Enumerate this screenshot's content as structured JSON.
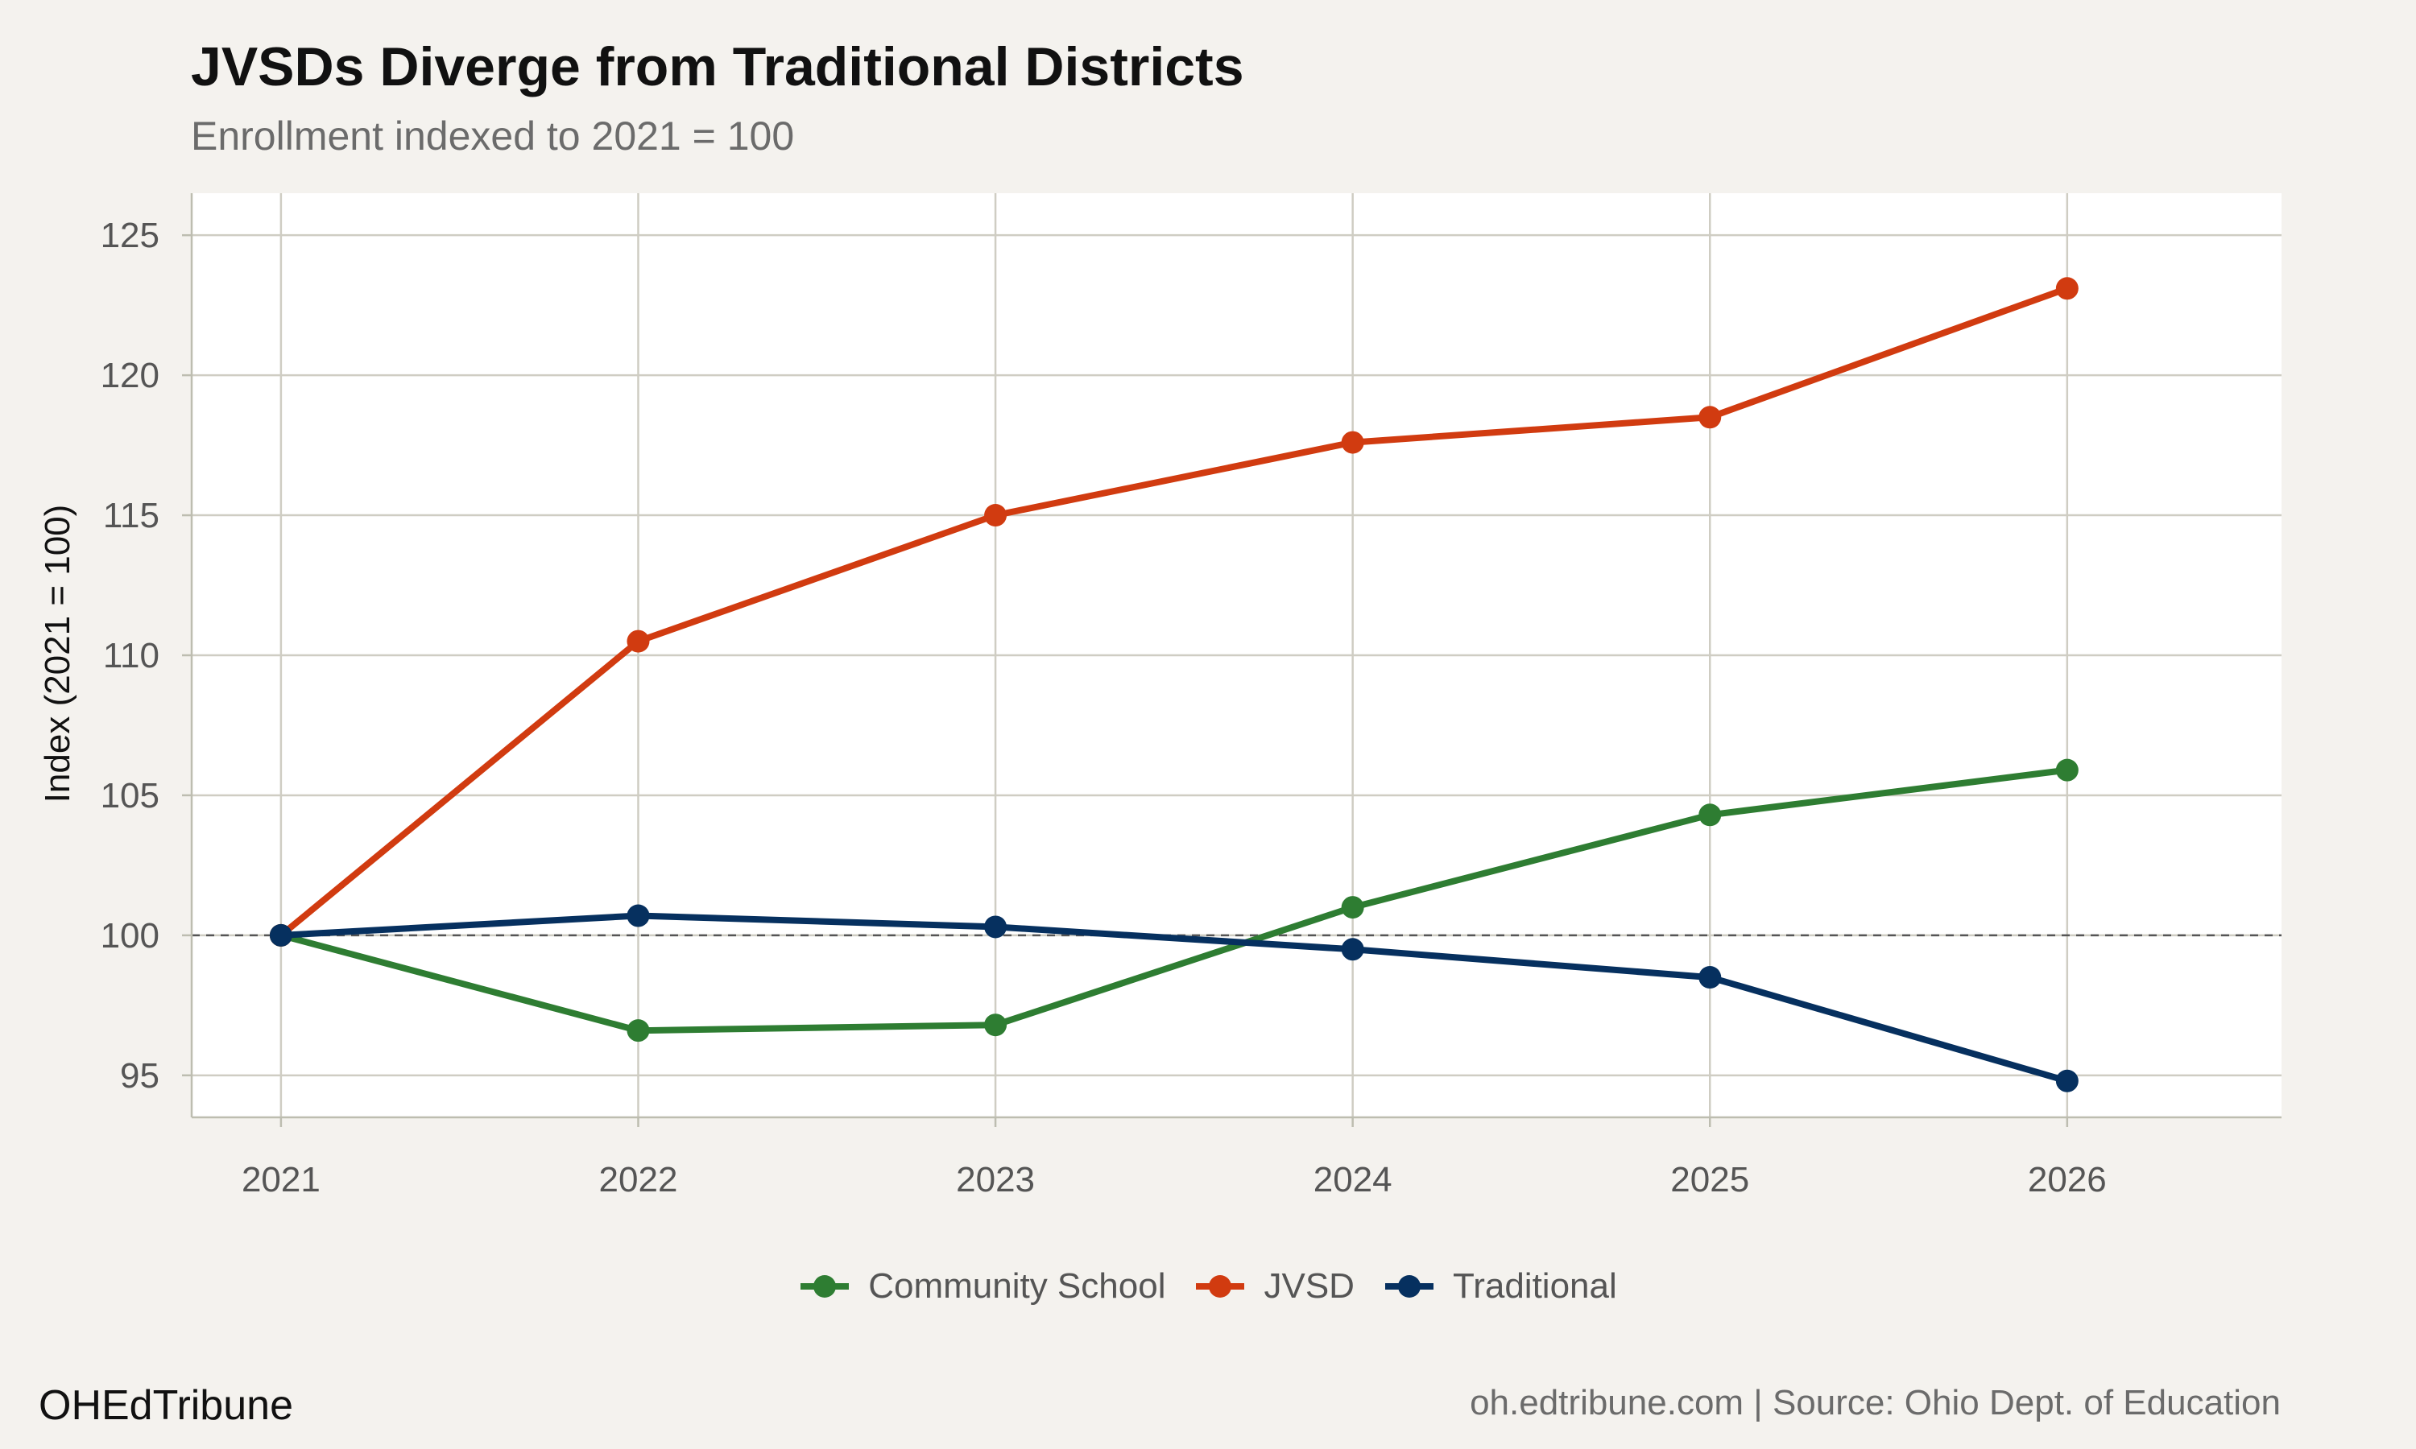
{
  "chart_data": {
    "type": "line",
    "title": "JVSDs Diverge from Traditional Districts",
    "subtitle": "Enrollment indexed to 2021 = 100",
    "ylabel": "Index (2021 = 100)",
    "xlabel": "",
    "x": [
      2021,
      2022,
      2023,
      2024,
      2025,
      2026
    ],
    "x_tick_labels": [
      "2021",
      "2022",
      "2023",
      "2024",
      "2025",
      "2026"
    ],
    "xlim": [
      2020.75,
      2026.6
    ],
    "ylim": [
      93.5,
      126.5
    ],
    "y_ticks": [
      95,
      100,
      105,
      110,
      115,
      120,
      125
    ],
    "y_tick_labels": [
      "95",
      "100",
      "105",
      "110",
      "115",
      "120",
      "125"
    ],
    "reference_line": 100,
    "grid": true,
    "legend_position": "bottom",
    "series": [
      {
        "name": "Community School",
        "color": "#2e7d32",
        "values": [
          100,
          96.6,
          96.8,
          101.0,
          104.3,
          105.9
        ]
      },
      {
        "name": "JVSD",
        "color": "#d13b10",
        "values": [
          100,
          110.5,
          115.0,
          117.6,
          118.5,
          123.1
        ]
      },
      {
        "name": "Traditional",
        "color": "#06305f",
        "values": [
          100,
          100.7,
          100.3,
          99.5,
          98.5,
          94.8
        ]
      }
    ]
  },
  "footer": {
    "brand": "OHEdTribune",
    "source": "oh.edtribune.com | Source: Ohio Dept. of Education"
  }
}
